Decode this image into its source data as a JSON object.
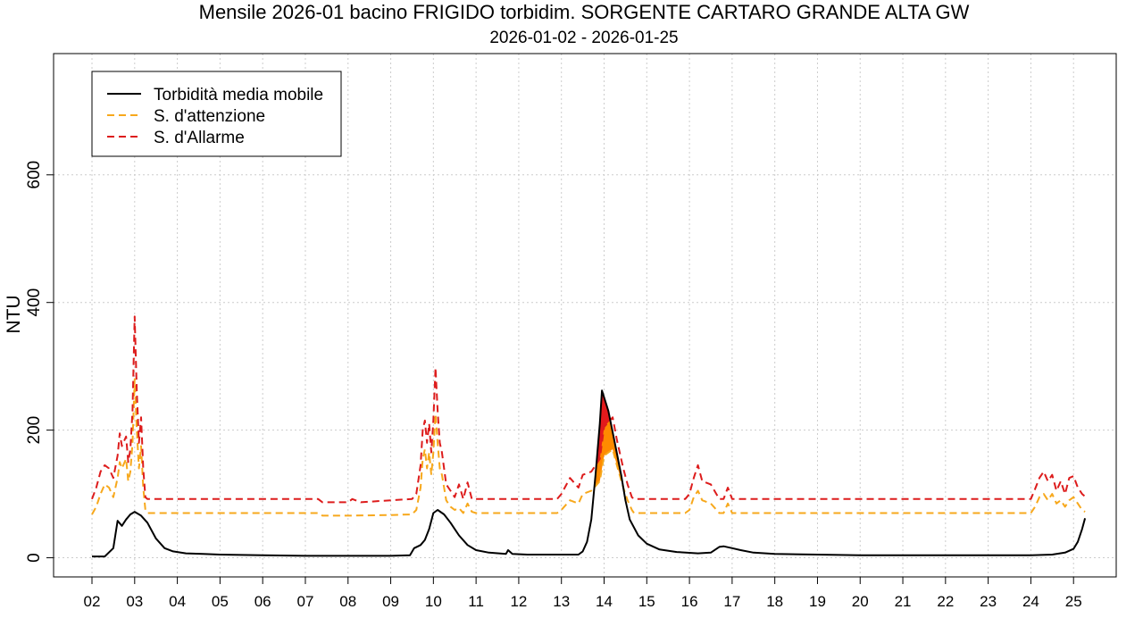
{
  "chart_data": {
    "type": "line",
    "title": "Mensile 2026-01 bacino FRIGIDO torbidim. SORGENTE CARTARO GRANDE ALTA GW",
    "subtitle": "2026-01-02 - 2026-01-25",
    "xlabel": "",
    "ylabel": "NTU",
    "x_ticks": [
      "02",
      "03",
      "04",
      "05",
      "06",
      "07",
      "08",
      "09",
      "10",
      "11",
      "12",
      "13",
      "14",
      "15",
      "16",
      "17",
      "18",
      "19",
      "20",
      "21",
      "22",
      "23",
      "24",
      "25"
    ],
    "xlim": [
      1.1,
      26.0
    ],
    "ylim": [
      -30,
      790
    ],
    "y_ticks": [
      0,
      200,
      400,
      600
    ],
    "y_tick_labels": [
      "0",
      "200",
      "400",
      "600"
    ],
    "grid": true,
    "legend_position": "top-left",
    "colors": {
      "turbidity": "#000000",
      "attention": "#f7a81c",
      "alarm": "#dd1c1c",
      "fill_alarm": "#e31a1c",
      "fill_attention": "#ff8a00",
      "grid": "#cccccc"
    },
    "series": [
      {
        "name": "Torbidità media mobile",
        "style": "solid",
        "points": [
          [
            2.0,
            2
          ],
          [
            2.3,
            2
          ],
          [
            2.5,
            15
          ],
          [
            2.6,
            58
          ],
          [
            2.7,
            50
          ],
          [
            2.8,
            60
          ],
          [
            2.9,
            68
          ],
          [
            3.0,
            72
          ],
          [
            3.15,
            66
          ],
          [
            3.3,
            55
          ],
          [
            3.5,
            30
          ],
          [
            3.7,
            15
          ],
          [
            3.9,
            10
          ],
          [
            4.2,
            7
          ],
          [
            4.6,
            6
          ],
          [
            5.0,
            5
          ],
          [
            6.0,
            4
          ],
          [
            7.0,
            3
          ],
          [
            8.0,
            3
          ],
          [
            9.0,
            3
          ],
          [
            9.45,
            4
          ],
          [
            9.55,
            15
          ],
          [
            9.7,
            20
          ],
          [
            9.8,
            28
          ],
          [
            9.9,
            45
          ],
          [
            10.0,
            70
          ],
          [
            10.1,
            75
          ],
          [
            10.25,
            68
          ],
          [
            10.4,
            55
          ],
          [
            10.6,
            35
          ],
          [
            10.8,
            20
          ],
          [
            11.0,
            12
          ],
          [
            11.3,
            8
          ],
          [
            11.7,
            6
          ],
          [
            11.75,
            12
          ],
          [
            11.85,
            6
          ],
          [
            12.2,
            5
          ],
          [
            13.0,
            5
          ],
          [
            13.4,
            5
          ],
          [
            13.5,
            10
          ],
          [
            13.6,
            25
          ],
          [
            13.7,
            60
          ],
          [
            13.8,
            130
          ],
          [
            13.9,
            210
          ],
          [
            13.95,
            262
          ],
          [
            14.1,
            230
          ],
          [
            14.25,
            180
          ],
          [
            14.4,
            130
          ],
          [
            14.5,
            90
          ],
          [
            14.6,
            60
          ],
          [
            14.8,
            35
          ],
          [
            15.0,
            22
          ],
          [
            15.3,
            13
          ],
          [
            15.7,
            9
          ],
          [
            16.2,
            7
          ],
          [
            16.5,
            8
          ],
          [
            16.7,
            17
          ],
          [
            16.8,
            18
          ],
          [
            17.0,
            15
          ],
          [
            17.2,
            12
          ],
          [
            17.5,
            8
          ],
          [
            18.0,
            6
          ],
          [
            19.0,
            5
          ],
          [
            20.0,
            4
          ],
          [
            21.0,
            4
          ],
          [
            22.0,
            4
          ],
          [
            23.0,
            4
          ],
          [
            24.0,
            4
          ],
          [
            24.5,
            5
          ],
          [
            24.8,
            8
          ],
          [
            25.0,
            14
          ],
          [
            25.1,
            25
          ],
          [
            25.2,
            45
          ],
          [
            25.27,
            62
          ]
        ]
      },
      {
        "name": "S. d'attenzione",
        "style": "dashed",
        "points": [
          [
            2.0,
            68
          ],
          [
            2.1,
            80
          ],
          [
            2.2,
            100
          ],
          [
            2.3,
            115
          ],
          [
            2.4,
            110
          ],
          [
            2.5,
            95
          ],
          [
            2.6,
            125
          ],
          [
            2.65,
            150
          ],
          [
            2.7,
            140
          ],
          [
            2.8,
            155
          ],
          [
            2.85,
            120
          ],
          [
            2.9,
            135
          ],
          [
            2.95,
            180
          ],
          [
            3.0,
            280
          ],
          [
            3.05,
            200
          ],
          [
            3.1,
            140
          ],
          [
            3.15,
            175
          ],
          [
            3.2,
            110
          ],
          [
            3.25,
            75
          ],
          [
            3.3,
            70
          ],
          [
            4.0,
            70
          ],
          [
            5.0,
            70
          ],
          [
            6.0,
            70
          ],
          [
            7.0,
            70
          ],
          [
            7.3,
            70
          ],
          [
            7.4,
            66
          ],
          [
            8.0,
            66
          ],
          [
            9.0,
            67
          ],
          [
            9.5,
            68
          ],
          [
            9.6,
            75
          ],
          [
            9.7,
            110
          ],
          [
            9.75,
            155
          ],
          [
            9.8,
            170
          ],
          [
            9.85,
            140
          ],
          [
            9.9,
            165
          ],
          [
            9.95,
            130
          ],
          [
            10.0,
            165
          ],
          [
            10.05,
            225
          ],
          [
            10.1,
            180
          ],
          [
            10.15,
            140
          ],
          [
            10.2,
            130
          ],
          [
            10.3,
            90
          ],
          [
            10.4,
            80
          ],
          [
            10.5,
            75
          ],
          [
            10.6,
            78
          ],
          [
            10.7,
            70
          ],
          [
            10.8,
            85
          ],
          [
            10.9,
            72
          ],
          [
            11.0,
            70
          ],
          [
            12.0,
            70
          ],
          [
            12.9,
            70
          ],
          [
            13.0,
            75
          ],
          [
            13.2,
            90
          ],
          [
            13.4,
            85
          ],
          [
            13.5,
            100
          ],
          [
            13.7,
            105
          ],
          [
            13.9,
            120
          ],
          [
            14.0,
            160
          ],
          [
            14.2,
            170
          ],
          [
            14.3,
            145
          ],
          [
            14.45,
            110
          ],
          [
            14.55,
            90
          ],
          [
            14.65,
            75
          ],
          [
            14.7,
            70
          ],
          [
            15.0,
            70
          ],
          [
            15.9,
            70
          ],
          [
            16.0,
            75
          ],
          [
            16.1,
            95
          ],
          [
            16.2,
            105
          ],
          [
            16.3,
            90
          ],
          [
            16.5,
            85
          ],
          [
            16.7,
            70
          ],
          [
            16.8,
            70
          ],
          [
            16.9,
            85
          ],
          [
            17.0,
            70
          ],
          [
            18.0,
            70
          ],
          [
            19.0,
            70
          ],
          [
            20.0,
            70
          ],
          [
            21.0,
            70
          ],
          [
            22.0,
            70
          ],
          [
            23.0,
            70
          ],
          [
            24.0,
            70
          ],
          [
            24.1,
            80
          ],
          [
            24.2,
            95
          ],
          [
            24.3,
            100
          ],
          [
            24.4,
            90
          ],
          [
            24.5,
            100
          ],
          [
            24.6,
            85
          ],
          [
            24.7,
            90
          ],
          [
            24.8,
            80
          ],
          [
            24.9,
            90
          ],
          [
            25.0,
            95
          ],
          [
            25.1,
            85
          ],
          [
            25.2,
            75
          ],
          [
            25.27,
            72
          ]
        ]
      },
      {
        "name": "S. d'Allarme",
        "style": "dashed",
        "points": [
          [
            2.0,
            92
          ],
          [
            2.1,
            110
          ],
          [
            2.2,
            135
          ],
          [
            2.3,
            145
          ],
          [
            2.4,
            140
          ],
          [
            2.5,
            125
          ],
          [
            2.6,
            160
          ],
          [
            2.65,
            195
          ],
          [
            2.7,
            175
          ],
          [
            2.8,
            190
          ],
          [
            2.85,
            150
          ],
          [
            2.9,
            170
          ],
          [
            2.95,
            230
          ],
          [
            3.0,
            378
          ],
          [
            3.05,
            260
          ],
          [
            3.1,
            180
          ],
          [
            3.15,
            220
          ],
          [
            3.2,
            140
          ],
          [
            3.25,
            95
          ],
          [
            3.3,
            92
          ],
          [
            4.0,
            92
          ],
          [
            5.0,
            92
          ],
          [
            6.0,
            92
          ],
          [
            7.0,
            92
          ],
          [
            7.3,
            92
          ],
          [
            7.4,
            87
          ],
          [
            8.0,
            87
          ],
          [
            8.1,
            92
          ],
          [
            8.3,
            87
          ],
          [
            9.0,
            90
          ],
          [
            9.5,
            92
          ],
          [
            9.6,
            100
          ],
          [
            9.7,
            145
          ],
          [
            9.75,
            200
          ],
          [
            9.8,
            215
          ],
          [
            9.85,
            180
          ],
          [
            9.9,
            210
          ],
          [
            9.95,
            165
          ],
          [
            10.0,
            215
          ],
          [
            10.05,
            298
          ],
          [
            10.1,
            230
          ],
          [
            10.15,
            180
          ],
          [
            10.2,
            165
          ],
          [
            10.3,
            115
          ],
          [
            10.4,
            105
          ],
          [
            10.5,
            95
          ],
          [
            10.6,
            115
          ],
          [
            10.7,
            92
          ],
          [
            10.8,
            118
          ],
          [
            10.9,
            92
          ],
          [
            11.0,
            92
          ],
          [
            12.0,
            92
          ],
          [
            12.9,
            92
          ],
          [
            13.0,
            100
          ],
          [
            13.2,
            125
          ],
          [
            13.4,
            110
          ],
          [
            13.5,
            130
          ],
          [
            13.7,
            135
          ],
          [
            13.9,
            155
          ],
          [
            14.0,
            205
          ],
          [
            14.2,
            220
          ],
          [
            14.3,
            185
          ],
          [
            14.45,
            140
          ],
          [
            14.55,
            115
          ],
          [
            14.65,
            95
          ],
          [
            14.7,
            92
          ],
          [
            15.0,
            92
          ],
          [
            15.9,
            92
          ],
          [
            16.0,
            100
          ],
          [
            16.1,
            125
          ],
          [
            16.2,
            145
          ],
          [
            16.3,
            120
          ],
          [
            16.5,
            115
          ],
          [
            16.7,
            92
          ],
          [
            16.8,
            92
          ],
          [
            16.9,
            110
          ],
          [
            17.0,
            92
          ],
          [
            18.0,
            92
          ],
          [
            19.0,
            92
          ],
          [
            20.0,
            92
          ],
          [
            21.0,
            92
          ],
          [
            22.0,
            92
          ],
          [
            23.0,
            92
          ],
          [
            24.0,
            92
          ],
          [
            24.1,
            108
          ],
          [
            24.2,
            125
          ],
          [
            24.3,
            135
          ],
          [
            24.4,
            120
          ],
          [
            24.5,
            130
          ],
          [
            24.6,
            105
          ],
          [
            24.7,
            120
          ],
          [
            24.8,
            100
          ],
          [
            24.9,
            125
          ],
          [
            25.0,
            128
          ],
          [
            25.1,
            110
          ],
          [
            25.2,
            100
          ],
          [
            25.27,
            96
          ]
        ]
      }
    ]
  }
}
